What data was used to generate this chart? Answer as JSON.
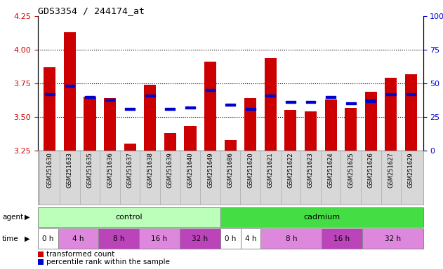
{
  "title": "GDS3354 / 244174_at",
  "samples": [
    "GSM251630",
    "GSM251633",
    "GSM251635",
    "GSM251636",
    "GSM251637",
    "GSM251638",
    "GSM251639",
    "GSM251640",
    "GSM251649",
    "GSM251686",
    "GSM251620",
    "GSM251621",
    "GSM251622",
    "GSM251623",
    "GSM251624",
    "GSM251625",
    "GSM251626",
    "GSM251627",
    "GSM251629"
  ],
  "red_values": [
    3.87,
    4.13,
    3.65,
    3.64,
    3.3,
    3.74,
    3.38,
    3.43,
    3.91,
    3.33,
    3.64,
    3.94,
    3.55,
    3.54,
    3.63,
    3.57,
    3.69,
    3.79,
    3.82
  ],
  "blue_percentiles": [
    42,
    48,
    40,
    38,
    31,
    41,
    31,
    32,
    45,
    34,
    31,
    41,
    36,
    36,
    40,
    35,
    37,
    42,
    42
  ],
  "ylim_left": [
    3.25,
    4.25
  ],
  "ylim_right": [
    0,
    100
  ],
  "yticks_left": [
    3.25,
    3.5,
    3.75,
    4.0,
    4.25
  ],
  "yticks_right": [
    0,
    25,
    50,
    75,
    100
  ],
  "red_color": "#cc0000",
  "blue_color": "#0000cc",
  "bar_width": 0.6,
  "grid_color": "#000000",
  "ctrl_color": "#bbffbb",
  "cad_color": "#44dd44",
  "time_colors": {
    "0 h": "#ffffff",
    "4 h": "#dd88dd",
    "8 h": "#bb44bb",
    "16 h": "#dd88dd",
    "32 h": "#bb44bb"
  },
  "control_n": 9,
  "cadmium_n": 10,
  "time_blocks_ctrl": [
    {
      "label": "0 h",
      "s": 0,
      "e": 1,
      "color": "#ffffff"
    },
    {
      "label": "4 h",
      "s": 1,
      "e": 3,
      "color": "#dd88dd"
    },
    {
      "label": "8 h",
      "s": 3,
      "e": 5,
      "color": "#bb44bb"
    },
    {
      "label": "16 h",
      "s": 5,
      "e": 7,
      "color": "#dd88dd"
    },
    {
      "label": "32 h",
      "s": 7,
      "e": 9,
      "color": "#bb44bb"
    }
  ],
  "time_blocks_cad": [
    {
      "label": "0 h",
      "s": 9,
      "e": 10,
      "color": "#ffffff"
    },
    {
      "label": "4 h",
      "s": 10,
      "e": 11,
      "color": "#ffffff"
    },
    {
      "label": "8 h",
      "s": 11,
      "e": 14,
      "color": "#dd88dd"
    },
    {
      "label": "16 h",
      "s": 14,
      "e": 16,
      "color": "#bb44bb"
    },
    {
      "label": "32 h",
      "s": 16,
      "e": 19,
      "color": "#dd88dd"
    }
  ],
  "tick_label_color_left": "#cc0000",
  "tick_label_color_right": "#0000cc",
  "background_color": "#ffffff"
}
